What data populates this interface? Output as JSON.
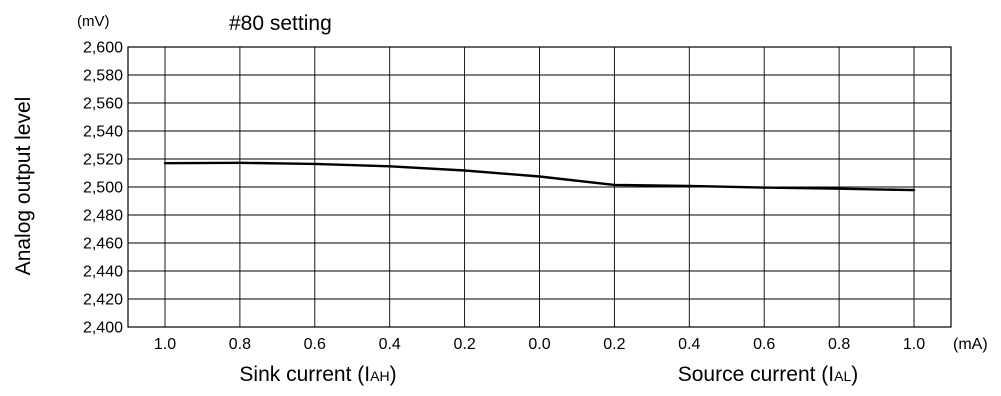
{
  "chart_data": {
    "type": "line",
    "title": "#80 setting",
    "y_unit": "(mV)",
    "x_unit": "(mA)",
    "ylabel": "Analog output level",
    "ylim": [
      2400,
      2600
    ],
    "y_ticks": [
      "2,400",
      "2,420",
      "2,440",
      "2,460",
      "2,480",
      "2,500",
      "2,520",
      "2,540",
      "2,560",
      "2,580",
      "2,600"
    ],
    "x_tick_labels": [
      "1.0",
      "0.8",
      "0.6",
      "0.4",
      "0.2",
      "0.0",
      "0.2",
      "0.4",
      "0.6",
      "0.8",
      "1.0"
    ],
    "x_groups": [
      {
        "label_main": "Sink current (I",
        "label_sub": "AH",
        "label_end": ")"
      },
      {
        "label_main": "Source current (I",
        "label_sub": "AL",
        "label_end": ")"
      }
    ],
    "grid": true,
    "series": [
      {
        "color": "#000000",
        "points": [
          {
            "x": "1.0",
            "y": 2517
          },
          {
            "x": "0.8",
            "y": 2517.3
          },
          {
            "x": "0.6",
            "y": 2516.5
          },
          {
            "x": "0.4",
            "y": 2514.8
          },
          {
            "x": "0.2",
            "y": 2511.8
          },
          {
            "x": "0.0",
            "y": 2507.5
          },
          {
            "x": "0.2",
            "y": 2501.5
          },
          {
            "x": "0.4",
            "y": 2500.8
          },
          {
            "x": "0.6",
            "y": 2499.6
          },
          {
            "x": "0.8",
            "y": 2498.8
          },
          {
            "x": "1.0",
            "y": 2497.8
          }
        ]
      }
    ]
  }
}
